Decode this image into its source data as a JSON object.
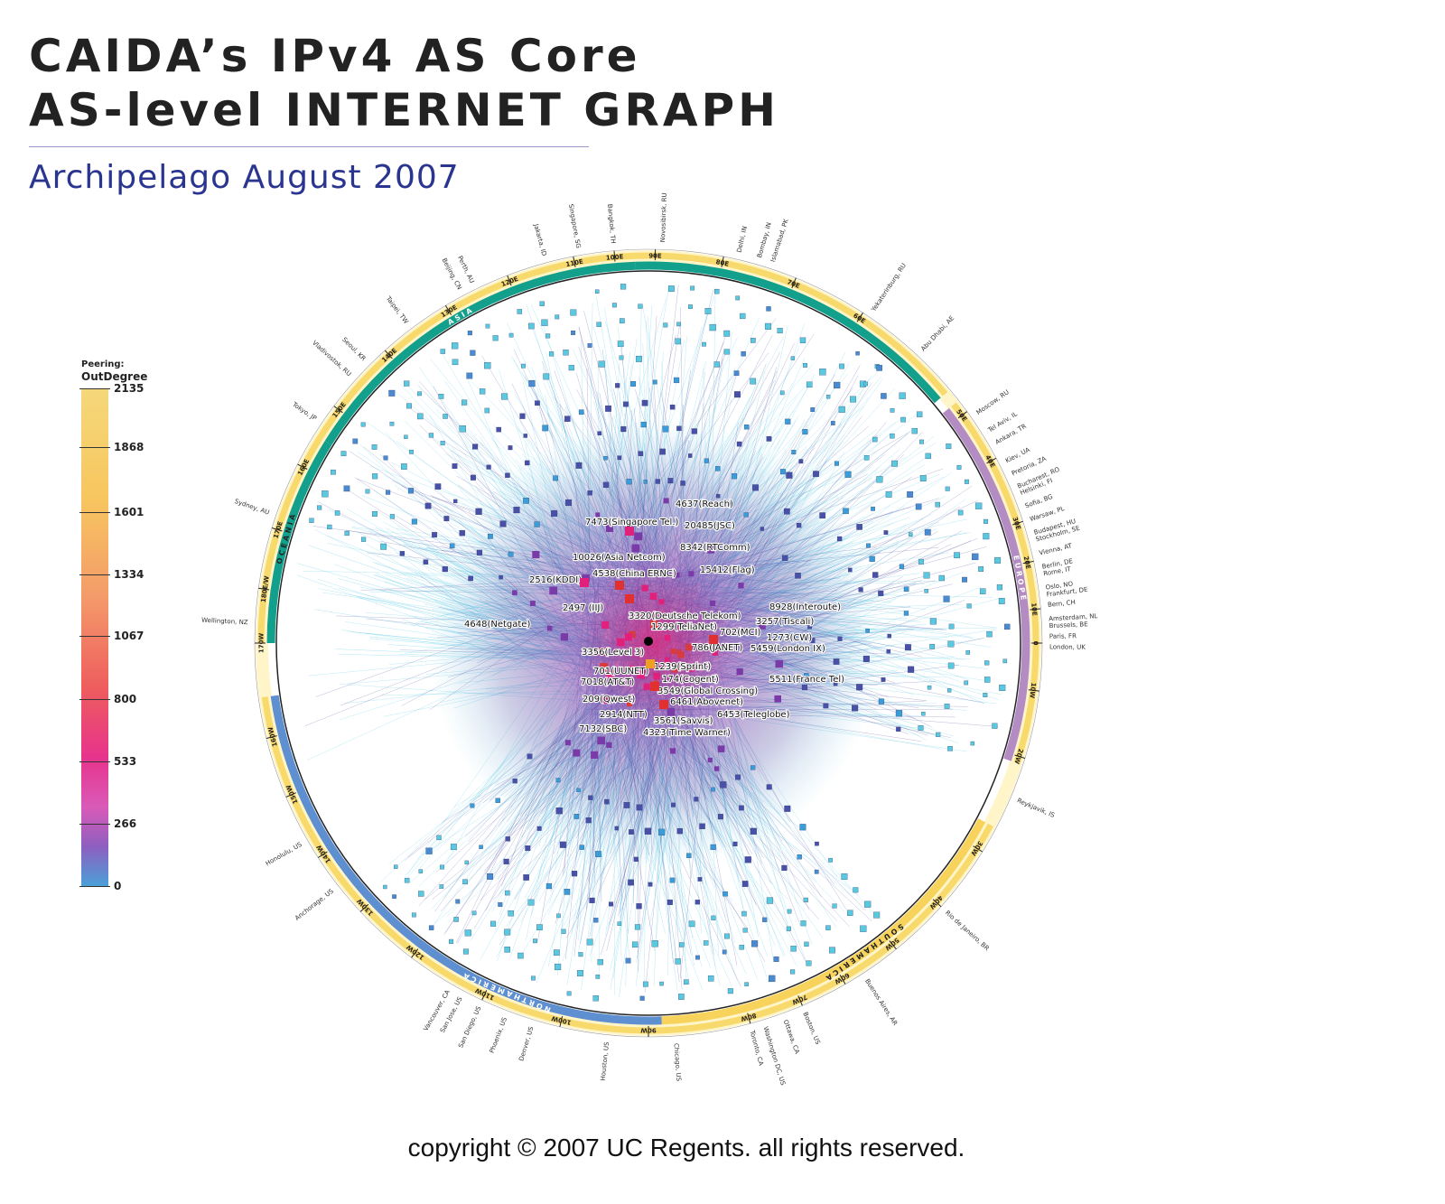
{
  "title_line1": "CAIDA’s IPv4 AS Core",
  "title_line2": "AS-level INTERNET GRAPH",
  "subtitle": "Archipelago August 2007",
  "copyright": "copyright © 2007 UC Regents. all rights reserved.",
  "legend": {
    "title_line1": "Peering:",
    "title_line2": "OutDegree",
    "ticks": [
      "2135",
      "1868",
      "1601",
      "1334",
      "1067",
      "800",
      "533",
      "266",
      "0"
    ],
    "colors": {
      "top": "#f5d87a",
      "mid": "#ee5d5d",
      "bottom": "#49a2d8"
    }
  },
  "colors": {
    "edge_light": "#3fc0e0",
    "edge_dark": "#3a3a9a",
    "core": "#e0207a",
    "asia_oceania": "#12a08c",
    "europe": "#b48cc4",
    "north_america": "#5e8fd0",
    "longitude_band": "#f7d35c"
  },
  "continents": [
    {
      "name": "A S I A",
      "color": "#ffffff"
    },
    {
      "name": "O C E A N I A",
      "color": "#222222"
    },
    {
      "name": "E U R O P E",
      "color": "#ffffff"
    },
    {
      "name": "N O R T H   A M E R I C A",
      "color": "#ffffff"
    },
    {
      "name": "S O U T H   A M E R I C A",
      "color": "#222222"
    }
  ],
  "longitudes": [
    "90E",
    "80E",
    "70E",
    "60E",
    "50E",
    "40E",
    "30E",
    "20E",
    "10E",
    "0",
    "10W",
    "20W",
    "30W",
    "40W",
    "50W",
    "60W",
    "70W",
    "80W",
    "90W",
    "100W",
    "110W",
    "120W",
    "130W",
    "140W",
    "150W",
    "160W",
    "170W",
    "180E/W",
    "170E",
    "160E",
    "150E",
    "140E",
    "130E",
    "120E",
    "110E",
    "100E"
  ],
  "cities": [
    "Novosibirsk, RU",
    "Delhi, IN",
    "Bombay, IN",
    "Islamabad, PK",
    "Yekaterinburg, RU",
    "Abu Dhabi, AE",
    "Moscow, RU",
    "Tel Aviv, IL",
    "Ankara, TR",
    "Kiev, UA",
    "Pretoria, ZA",
    "Bucharest, RO",
    "Helsinki, FI",
    "Sofia, BG",
    "Warsaw, PL",
    "Budapest, HU",
    "Stockholm, SE",
    "Vienna, AT",
    "Berlin, DE",
    "Rome, IT",
    "Oslo, NO",
    "Frankfurt, DE",
    "Bern, CH",
    "Amsterdam, NL",
    "Brussels, BE",
    "Paris, FR",
    "London, UK",
    "Reykjavik, IS",
    "Rio de Janeiro, BR",
    "Buenos Aires, AR",
    "Boston, US",
    "Ottawa, CA",
    "Washington DC, US",
    "Toronto, CA",
    "Chicago, US",
    "Houston, US",
    "Denver, US",
    "Phoenix, US",
    "San Diego, US",
    "San Jose, US",
    "Vancouver, CA",
    "Anchorage, US",
    "Honolulu, US",
    "Wellington, NZ",
    "Sydney, AU",
    "Tokyo, JP",
    "Vladivostok, RU",
    "Seoul, KR",
    "Taipei, TW",
    "Beijing, CN",
    "Perth, AU",
    "Jakarta, ID",
    "Singapore, SG",
    "Bangkok, TH"
  ],
  "nodes": [
    "4637(Reach)",
    "7473(Singapore Tel.)",
    "20485(JSC)",
    "8342(RTComm)",
    "10026(Asia Netcom)",
    "4538(China ERNC)",
    "15412(Flag)",
    "2516(KDDI)",
    "2497 (IIJ)",
    "8928(Interoute)",
    "3320(Deutsche Telekom)",
    "3257(Tiscali)",
    "1299(TeliaNet)",
    "702(MCI)",
    "1273(CW)",
    "786(JANET)",
    "5459(London IX)",
    "4648(Netgate)",
    "3356(Level 3)",
    "1239(Sprint)",
    "701(UUNET)",
    "174(Cogent)",
    "7018(AT&T)",
    "5511(France Tel)",
    "3549(Global Crossing)",
    "209(Qwest)",
    "6461(Abovenet)",
    "2914(NTT)",
    "6453(Teleglobe)",
    "3561(Savvis)",
    "7132(SBC)",
    "4323(Time Warner)"
  ]
}
